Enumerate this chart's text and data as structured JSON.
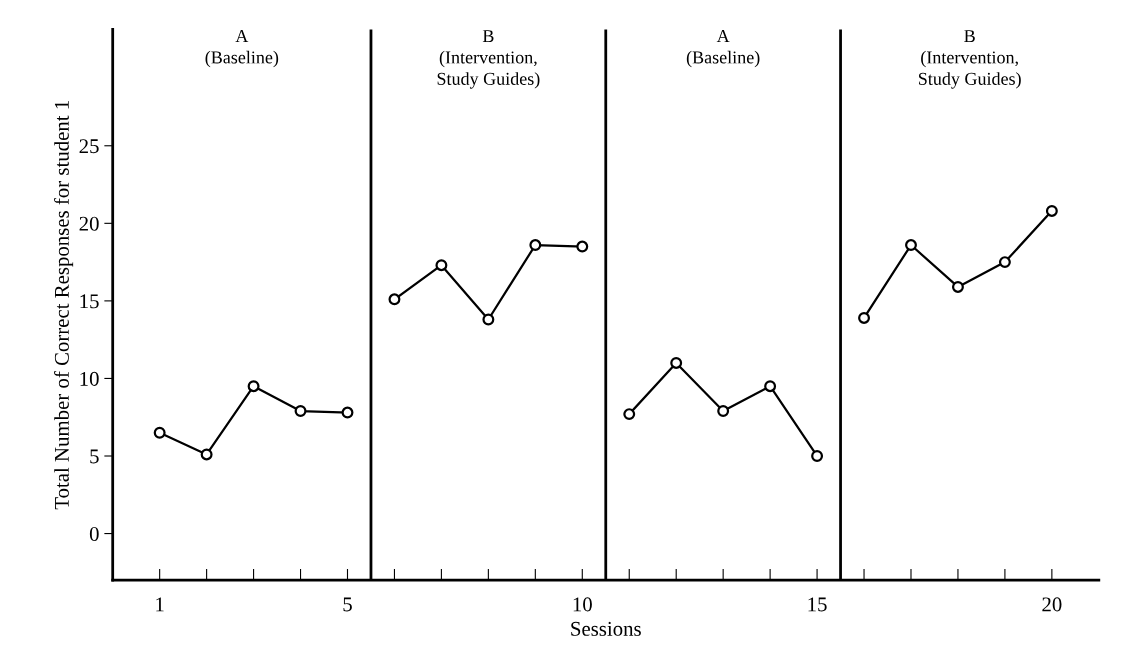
{
  "chart_data": {
    "type": "line",
    "xlabel": "Sessions",
    "ylabel": "Total Number of Correct Responses for student 1",
    "annotations": [
      "A\n(Baseline)",
      "B\n(Intervention,\nStudy Guides)",
      "A\n(Baseline)",
      "B\n(Intervention,\nStudy Guides)"
    ],
    "series": [
      {
        "color": "#000000",
        "x": [
          1,
          2,
          3,
          4,
          5
        ],
        "values": [
          6.5,
          5.1,
          9.5,
          7.9,
          7.8
        ]
      },
      {
        "color": "#000000",
        "x": [
          6,
          7,
          8,
          9,
          10
        ],
        "values": [
          15.1,
          17.3,
          13.8,
          18.6,
          18.5
        ]
      },
      {
        "color": "#000000",
        "x": [
          11,
          12,
          13,
          14,
          15
        ],
        "values": [
          7.7,
          11.0,
          7.9,
          9.5,
          5.0
        ]
      },
      {
        "color": "#000000",
        "x": [
          16,
          17,
          18,
          19,
          20
        ],
        "values": [
          13.9,
          18.6,
          15.9,
          17.5,
          20.8
        ]
      }
    ],
    "ref_lines": [
      {
        "axis": "x",
        "value": 5.5,
        "color": "#000000"
      },
      {
        "axis": "x",
        "value": 10.5,
        "color": "#000000"
      },
      {
        "axis": "x",
        "value": 15.5,
        "color": "#000000"
      }
    ],
    "xlim": [
      0,
      21
    ],
    "ylim": [
      -3,
      32.5
    ],
    "xticks": [
      1,
      {
        "value": 2,
        "label": null
      },
      {
        "value": 3,
        "label": null
      },
      {
        "value": 4,
        "label": null
      },
      5,
      {
        "value": 6,
        "label": null
      },
      {
        "value": 7,
        "label": null
      },
      {
        "value": 8,
        "label": null
      },
      {
        "value": 9,
        "label": null
      },
      10,
      {
        "value": 11,
        "label": null
      },
      {
        "value": 12,
        "label": null
      },
      {
        "value": 13,
        "label": null
      },
      {
        "value": 14,
        "label": null
      },
      15,
      {
        "value": 16,
        "label": null
      },
      {
        "value": 17,
        "label": null
      },
      {
        "value": 18,
        "label": null
      },
      {
        "value": 19,
        "label": null
      },
      20
    ],
    "yticks": [
      0,
      5,
      10,
      15,
      20,
      25
    ],
    "marker": "circle",
    "line_style": "solid",
    "grid": false,
    "legend": false
  }
}
